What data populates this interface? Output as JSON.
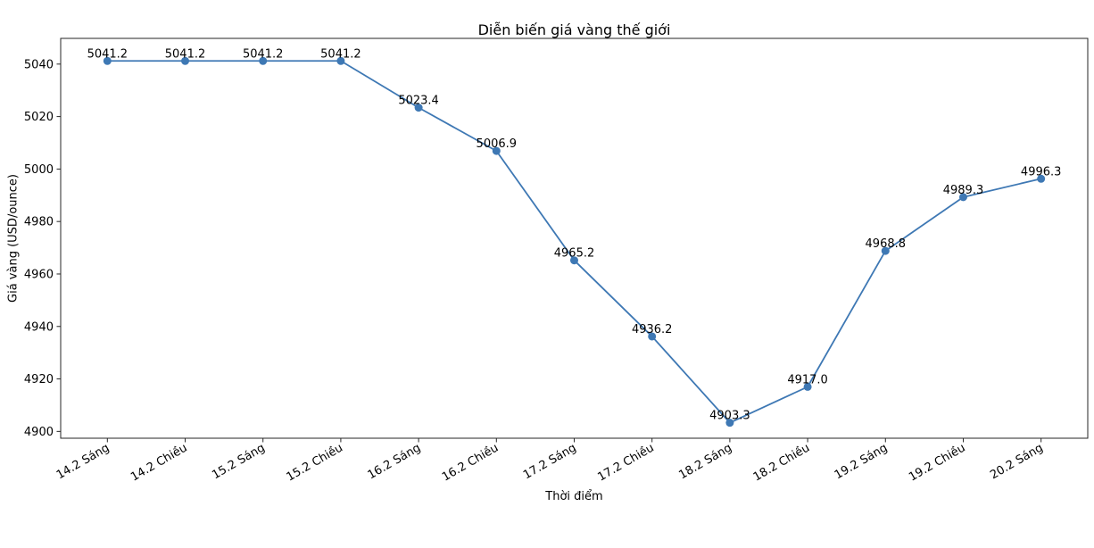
{
  "figure": {
    "background_color": "#ffffff",
    "spine_color": "#262626",
    "text_color": "#000000"
  },
  "chart_data": {
    "type": "line",
    "title": "Diễn biến giá vàng thế giới",
    "xlabel": "Thời điểm",
    "ylabel": "Giá vàng (USD/ounce)",
    "categories": [
      "14.2 Sáng",
      "14.2 Chiều",
      "15.2 Sáng",
      "15.2 Chiều",
      "16.2 Sáng",
      "16.2 Chiều",
      "17.2 Sáng",
      "17.2 Chiều",
      "18.2 Sáng",
      "18.2 Chiều",
      "19.2 Sáng",
      "19.2 Chiều",
      "20.2 Sáng"
    ],
    "series": [
      {
        "name": "Giá vàng thế giới",
        "values": [
          5041.2,
          5041.2,
          5041.2,
          5041.2,
          5023.4,
          5006.9,
          4965.2,
          4936.2,
          4903.3,
          4917.0,
          4968.8,
          4989.3,
          4996.3
        ],
        "point_labels": [
          "5041.2",
          "5041.2",
          "5041.2",
          "5041.2",
          "5023.4",
          "5006.9",
          "4965.2",
          "4936.2",
          "4903.3",
          "4917.0",
          "4968.8",
          "4989.3",
          "4996.3"
        ],
        "color": "#3E78B4",
        "marker": "circle"
      }
    ],
    "yticks": [
      4900,
      4920,
      4940,
      4960,
      4980,
      5000,
      5020,
      5040
    ],
    "ylim": [
      4897.4,
      5049.8
    ],
    "xtick_rotation_deg": 30,
    "grid": false,
    "legend_position": "none",
    "annotations": "value shown above every data point"
  }
}
